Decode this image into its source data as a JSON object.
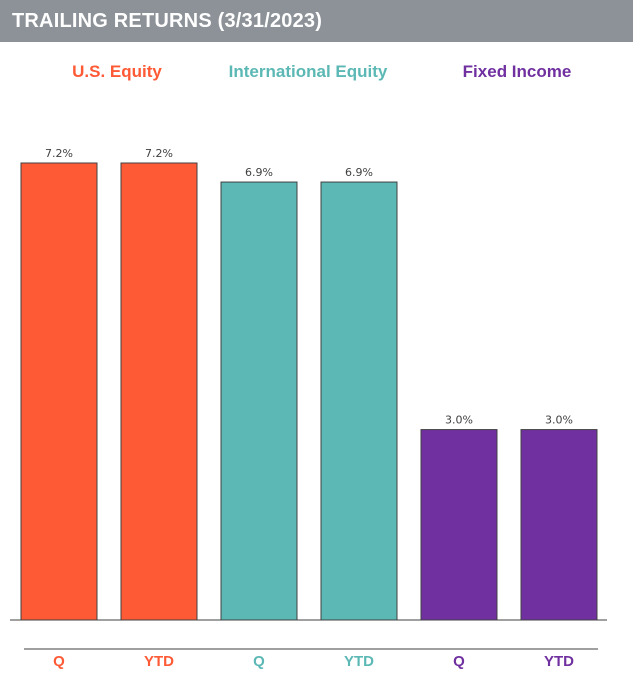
{
  "header": {
    "title": "TRAILING RETURNS (3/31/2023)"
  },
  "chart_data": {
    "type": "bar",
    "title": "TRAILING RETURNS (3/31/2023)",
    "groups": [
      {
        "name": "U.S. Equity",
        "color": "#ff5a36",
        "bars": [
          {
            "category": "Q",
            "value": 7.2,
            "label": "7.2%"
          },
          {
            "category": "YTD",
            "value": 7.2,
            "label": "7.2%"
          }
        ]
      },
      {
        "name": "International Equity",
        "color": "#5bb8b4",
        "bars": [
          {
            "category": "Q",
            "value": 6.9,
            "label": "6.9%"
          },
          {
            "category": "YTD",
            "value": 6.9,
            "label": "6.9%"
          }
        ]
      },
      {
        "name": "Fixed Income",
        "color": "#7030a0",
        "bars": [
          {
            "category": "Q",
            "value": 3.0,
            "label": "3.0%"
          },
          {
            "category": "YTD",
            "value": 3.0,
            "label": "3.0%"
          }
        ]
      }
    ],
    "ylim": [
      0,
      7.2
    ],
    "grid": false
  }
}
